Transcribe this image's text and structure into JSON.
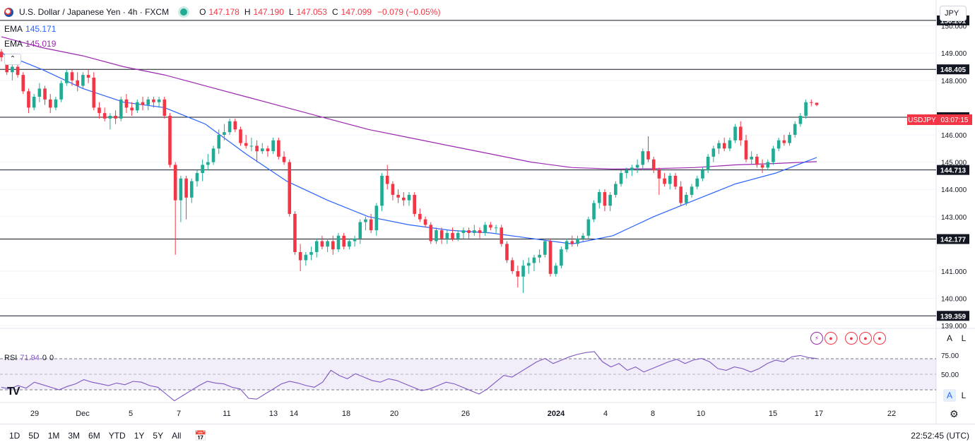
{
  "header": {
    "symbol_title": "U.S. Dollar / Japanese Yen · 4h · FXCM",
    "open_label": "O",
    "open": "147.178",
    "high_label": "H",
    "high": "147.190",
    "low_label": "L",
    "low": "147.053",
    "close_label": "C",
    "close": "147.099",
    "change": "−0.079 (−0.05%)"
  },
  "indicators": {
    "ema1_label": "EMA",
    "ema1_value": "145.171",
    "ema2_label": "EMA",
    "ema2_value": "145.019",
    "collapse_icon": "chevron-up-icon"
  },
  "currency_button": "JPY",
  "price_tag": {
    "symbol": "USDJPY",
    "countdown": "03:07:15"
  },
  "rsi": {
    "label": "RSI",
    "value": "71.94",
    "extra1": "0",
    "extra2": "0",
    "levels": [
      "75.00",
      "50.00"
    ]
  },
  "corner_buttons": {
    "a": "A",
    "l": "L"
  },
  "bottom_bar": {
    "ranges": [
      "1D",
      "5D",
      "1M",
      "3M",
      "6M",
      "YTD",
      "1Y",
      "5Y",
      "All"
    ],
    "clock": "22:52:45 (UTC)"
  },
  "chart_data": {
    "type": "candlestick",
    "title": "U.S. Dollar / Japanese Yen · 4h · FXCM",
    "y_ticks": [
      "150.000",
      "149.000",
      "148.000",
      "146.000",
      "145.000",
      "144.000",
      "143.000",
      "141.000",
      "140.000",
      "139.000"
    ],
    "ylim": [
      138.9,
      150.95
    ],
    "x_ticks": [
      "29",
      "Dec",
      "5",
      "7",
      "11",
      "13",
      "14",
      "18",
      "20",
      "26",
      "2024",
      "4",
      "8",
      "10",
      "15",
      "17",
      "22"
    ],
    "horizontal_levels": [
      "150.201",
      "148.405",
      "146.649",
      "144.713",
      "142.177",
      "139.359"
    ],
    "last_price": 147.099,
    "candles": [
      [
        149.05,
        149.15,
        148.7,
        148.85
      ],
      [
        148.85,
        148.95,
        148.2,
        148.3
      ],
      [
        148.3,
        148.6,
        148.0,
        148.5
      ],
      [
        148.5,
        148.6,
        148.1,
        148.2
      ],
      [
        148.2,
        148.3,
        147.5,
        147.6
      ],
      [
        147.6,
        147.7,
        146.8,
        147.0
      ],
      [
        147.0,
        147.5,
        146.9,
        147.4
      ],
      [
        147.4,
        147.9,
        147.2,
        147.7
      ],
      [
        147.7,
        147.8,
        147.1,
        147.3
      ],
      [
        147.3,
        147.5,
        146.8,
        147.0
      ],
      [
        147.0,
        147.4,
        146.9,
        147.3
      ],
      [
        147.3,
        148.0,
        147.2,
        147.9
      ],
      [
        147.9,
        148.4,
        147.8,
        148.3
      ],
      [
        148.3,
        148.4,
        147.8,
        148.0
      ],
      [
        148.0,
        148.3,
        147.6,
        147.8
      ],
      [
        147.8,
        148.3,
        147.7,
        148.2
      ],
      [
        148.2,
        148.4,
        147.9,
        148.1
      ],
      [
        148.1,
        148.3,
        146.9,
        147.0
      ],
      [
        147.0,
        147.2,
        146.6,
        146.8
      ],
      [
        146.8,
        147.0,
        146.5,
        146.6
      ],
      [
        146.6,
        146.8,
        146.2,
        146.7
      ],
      [
        146.7,
        146.9,
        146.4,
        146.6
      ],
      [
        146.6,
        147.4,
        146.5,
        147.3
      ],
      [
        147.3,
        147.5,
        146.8,
        147.0
      ],
      [
        147.0,
        147.2,
        146.7,
        146.9
      ],
      [
        146.9,
        147.3,
        146.8,
        147.2
      ],
      [
        147.2,
        147.4,
        146.9,
        147.1
      ],
      [
        147.1,
        147.4,
        146.9,
        147.3
      ],
      [
        147.3,
        147.4,
        147.0,
        147.2
      ],
      [
        147.2,
        147.4,
        147.0,
        147.3
      ],
      [
        147.3,
        147.4,
        146.6,
        146.7
      ],
      [
        146.7,
        146.8,
        144.8,
        144.9
      ],
      [
        144.9,
        145.0,
        141.6,
        143.6
      ],
      [
        143.6,
        144.5,
        142.8,
        144.4
      ],
      [
        144.4,
        144.5,
        142.9,
        143.7
      ],
      [
        143.7,
        144.4,
        143.5,
        144.3
      ],
      [
        144.3,
        144.7,
        144.1,
        144.6
      ],
      [
        144.6,
        145.1,
        144.3,
        144.9
      ],
      [
        144.9,
        145.3,
        144.7,
        145.0
      ],
      [
        145.0,
        145.6,
        144.9,
        145.5
      ],
      [
        145.5,
        146.2,
        145.3,
        146.0
      ],
      [
        146.0,
        146.4,
        145.8,
        146.1
      ],
      [
        146.1,
        146.6,
        146.0,
        146.5
      ],
      [
        146.5,
        146.6,
        146.1,
        146.2
      ],
      [
        146.2,
        146.3,
        145.6,
        145.7
      ],
      [
        145.7,
        146.0,
        145.5,
        145.6
      ],
      [
        145.6,
        145.9,
        145.4,
        145.6
      ],
      [
        145.6,
        145.8,
        145.0,
        145.4
      ],
      [
        145.4,
        145.7,
        145.3,
        145.5
      ],
      [
        145.5,
        145.6,
        145.2,
        145.4
      ],
      [
        145.4,
        145.9,
        145.3,
        145.8
      ],
      [
        145.8,
        145.9,
        145.1,
        145.2
      ],
      [
        145.2,
        145.4,
        144.9,
        145.0
      ],
      [
        145.0,
        145.1,
        143.0,
        143.1
      ],
      [
        143.1,
        143.2,
        141.6,
        141.7
      ],
      [
        141.7,
        142.0,
        141.0,
        141.4
      ],
      [
        141.4,
        141.7,
        141.2,
        141.6
      ],
      [
        141.6,
        141.9,
        141.4,
        141.7
      ],
      [
        141.7,
        142.2,
        141.5,
        142.1
      ],
      [
        142.1,
        142.3,
        141.8,
        141.9
      ],
      [
        141.9,
        142.2,
        141.7,
        142.1
      ],
      [
        142.1,
        142.3,
        141.6,
        141.8
      ],
      [
        141.8,
        142.4,
        141.7,
        142.3
      ],
      [
        142.3,
        142.4,
        141.8,
        141.9
      ],
      [
        141.9,
        142.2,
        141.8,
        142.1
      ],
      [
        142.1,
        142.3,
        141.9,
        142.2
      ],
      [
        142.2,
        142.9,
        142.0,
        142.8
      ],
      [
        142.8,
        143.0,
        142.5,
        142.9
      ],
      [
        142.9,
        143.1,
        142.4,
        142.5
      ],
      [
        142.5,
        143.5,
        142.3,
        143.4
      ],
      [
        143.4,
        144.6,
        143.2,
        144.5
      ],
      [
        144.5,
        144.9,
        144.0,
        144.2
      ],
      [
        144.2,
        144.3,
        143.6,
        143.8
      ],
      [
        143.8,
        144.0,
        143.5,
        143.7
      ],
      [
        143.7,
        143.9,
        143.4,
        143.6
      ],
      [
        143.6,
        143.9,
        143.4,
        143.8
      ],
      [
        143.8,
        143.9,
        143.0,
        143.1
      ],
      [
        143.1,
        143.3,
        142.8,
        142.9
      ],
      [
        142.9,
        143.0,
        142.6,
        142.7
      ],
      [
        142.7,
        142.8,
        142.0,
        142.1
      ],
      [
        142.1,
        142.6,
        142.0,
        142.5
      ],
      [
        142.5,
        142.6,
        142.0,
        142.2
      ],
      [
        142.2,
        142.5,
        142.0,
        142.4
      ],
      [
        142.4,
        142.6,
        142.1,
        142.2
      ],
      [
        142.2,
        142.5,
        142.1,
        142.4
      ],
      [
        142.4,
        142.6,
        142.2,
        142.5
      ],
      [
        142.5,
        142.6,
        142.2,
        142.4
      ],
      [
        142.4,
        142.7,
        142.3,
        142.5
      ],
      [
        142.5,
        142.6,
        142.2,
        142.4
      ],
      [
        142.4,
        142.8,
        142.3,
        142.7
      ],
      [
        142.7,
        142.8,
        142.5,
        142.6
      ],
      [
        142.6,
        142.7,
        142.4,
        142.6
      ],
      [
        142.6,
        142.7,
        141.9,
        142.0
      ],
      [
        142.0,
        142.1,
        141.3,
        141.4
      ],
      [
        141.4,
        141.5,
        140.9,
        141.0
      ],
      [
        141.0,
        141.2,
        140.4,
        140.8
      ],
      [
        140.8,
        141.4,
        140.2,
        141.2
      ],
      [
        141.2,
        141.5,
        140.9,
        141.3
      ],
      [
        141.3,
        141.6,
        141.0,
        141.5
      ],
      [
        141.5,
        141.8,
        141.3,
        141.6
      ],
      [
        141.6,
        142.2,
        141.5,
        142.1
      ],
      [
        142.1,
        142.2,
        140.8,
        140.9
      ],
      [
        140.9,
        141.3,
        140.8,
        141.2
      ],
      [
        141.2,
        141.9,
        141.1,
        141.8
      ],
      [
        141.8,
        142.2,
        141.7,
        142.1
      ],
      [
        142.1,
        142.3,
        141.9,
        142.0
      ],
      [
        142.0,
        142.3,
        141.9,
        142.2
      ],
      [
        142.2,
        142.4,
        142.1,
        142.3
      ],
      [
        142.3,
        143.0,
        142.2,
        142.9
      ],
      [
        142.9,
        143.6,
        142.8,
        143.5
      ],
      [
        143.5,
        144.0,
        143.3,
        143.9
      ],
      [
        143.9,
        144.0,
        143.2,
        143.4
      ],
      [
        143.4,
        143.9,
        143.2,
        143.8
      ],
      [
        143.8,
        144.3,
        143.7,
        144.2
      ],
      [
        144.2,
        144.7,
        144.1,
        144.6
      ],
      [
        144.6,
        144.8,
        144.4,
        144.7
      ],
      [
        144.7,
        144.9,
        144.5,
        144.8
      ],
      [
        144.8,
        145.1,
        144.6,
        144.9
      ],
      [
        144.9,
        145.5,
        144.7,
        145.4
      ],
      [
        145.4,
        145.95,
        145.0,
        145.1
      ],
      [
        145.1,
        145.2,
        144.6,
        144.7
      ],
      [
        144.7,
        144.8,
        143.8,
        144.4
      ],
      [
        144.4,
        144.6,
        144.1,
        144.2
      ],
      [
        144.2,
        144.6,
        144.0,
        144.5
      ],
      [
        144.5,
        144.6,
        144.0,
        144.1
      ],
      [
        144.1,
        144.3,
        143.4,
        143.5
      ],
      [
        143.5,
        143.9,
        143.4,
        143.8
      ],
      [
        143.8,
        144.2,
        143.7,
        144.1
      ],
      [
        144.1,
        144.5,
        144.0,
        144.4
      ],
      [
        144.4,
        144.8,
        144.3,
        144.7
      ],
      [
        144.7,
        145.3,
        144.6,
        145.2
      ],
      [
        145.2,
        145.6,
        145.0,
        145.5
      ],
      [
        145.5,
        145.8,
        145.3,
        145.7
      ],
      [
        145.7,
        145.9,
        145.4,
        145.5
      ],
      [
        145.5,
        145.9,
        145.4,
        145.8
      ],
      [
        145.8,
        146.4,
        145.7,
        146.3
      ],
      [
        146.3,
        146.5,
        145.6,
        145.8
      ],
      [
        145.8,
        146.0,
        145.0,
        145.1
      ],
      [
        145.1,
        145.4,
        144.9,
        145.2
      ],
      [
        145.2,
        145.3,
        144.8,
        144.9
      ],
      [
        144.9,
        145.1,
        144.6,
        144.8
      ],
      [
        144.8,
        145.1,
        144.7,
        145.0
      ],
      [
        145.0,
        145.6,
        144.9,
        145.5
      ],
      [
        145.5,
        145.9,
        145.4,
        145.8
      ],
      [
        145.8,
        146.0,
        145.6,
        145.7
      ],
      [
        145.7,
        146.1,
        145.6,
        146.0
      ],
      [
        146.0,
        146.5,
        145.9,
        146.4
      ],
      [
        146.4,
        146.8,
        146.3,
        146.7
      ],
      [
        146.7,
        147.3,
        146.6,
        147.2
      ],
      [
        147.2,
        147.3,
        147.05,
        147.18
      ],
      [
        147.178,
        147.19,
        147.053,
        147.099
      ]
    ],
    "ema_fast": [
      149.0,
      148.4,
      147.7,
      147.2,
      147.0,
      146.4,
      145.3,
      144.3,
      143.6,
      143.0,
      142.7,
      142.5,
      142.4,
      142.2,
      142.0,
      142.3,
      143.0,
      143.6,
      144.2,
      144.6,
      145.171
    ],
    "ema_slow": [
      149.6,
      149.2,
      148.9,
      148.5,
      148.2,
      147.8,
      147.4,
      147.0,
      146.6,
      146.2,
      145.9,
      145.6,
      145.3,
      145.0,
      144.8,
      144.75,
      144.76,
      144.8,
      144.9,
      144.95,
      145.019
    ],
    "rsi_values": [
      38,
      36,
      40,
      37,
      44,
      41,
      38,
      35,
      39,
      42,
      47,
      44,
      42,
      40,
      43,
      41,
      45,
      44,
      40,
      38,
      30,
      22,
      28,
      34,
      40,
      45,
      43,
      42,
      38,
      36,
      25,
      24,
      30,
      36,
      42,
      45,
      43,
      40,
      38,
      44,
      58,
      52,
      48,
      54,
      50,
      46,
      44,
      48,
      46,
      42,
      38,
      34,
      36,
      40,
      44,
      42,
      38,
      34,
      30,
      36,
      44,
      52,
      50,
      56,
      62,
      68,
      72,
      66,
      70,
      74,
      77,
      79,
      80,
      68,
      62,
      66,
      58,
      62,
      56,
      60,
      64,
      68,
      71,
      66,
      70,
      72,
      68,
      60,
      58,
      62,
      60,
      56,
      60,
      66,
      70,
      68,
      74,
      75.5,
      73,
      71.94
    ],
    "rsi_ylim": [
      20,
      85
    ],
    "rsi_band": [
      30,
      70
    ]
  }
}
